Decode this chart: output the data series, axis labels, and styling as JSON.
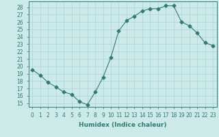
{
  "x": [
    0,
    1,
    2,
    3,
    4,
    5,
    6,
    7,
    8,
    9,
    10,
    11,
    12,
    13,
    14,
    15,
    16,
    17,
    18,
    19,
    20,
    21,
    22,
    23
  ],
  "y": [
    19.5,
    18.8,
    17.8,
    17.2,
    16.5,
    16.2,
    15.2,
    14.8,
    16.5,
    18.5,
    21.2,
    24.8,
    26.2,
    26.8,
    27.5,
    27.8,
    27.8,
    28.2,
    28.2,
    26.0,
    25.5,
    24.5,
    23.2,
    22.8
  ],
  "line_color": "#2e7d6e",
  "marker": "D",
  "marker_size": 2.5,
  "bg_color": "#cceae8",
  "grid_color": "#add4d0",
  "xlabel": "Humidex (Indice chaleur)",
  "xlim": [
    -0.5,
    23.5
  ],
  "ylim": [
    14.5,
    28.8
  ],
  "yticks": [
    15,
    16,
    17,
    18,
    19,
    20,
    21,
    22,
    23,
    24,
    25,
    26,
    27,
    28
  ],
  "xticks": [
    0,
    1,
    2,
    3,
    4,
    5,
    6,
    7,
    8,
    9,
    10,
    11,
    12,
    13,
    14,
    15,
    16,
    17,
    18,
    19,
    20,
    21,
    22,
    23
  ],
  "tick_fontsize": 5.5,
  "xlabel_fontsize": 6.5
}
